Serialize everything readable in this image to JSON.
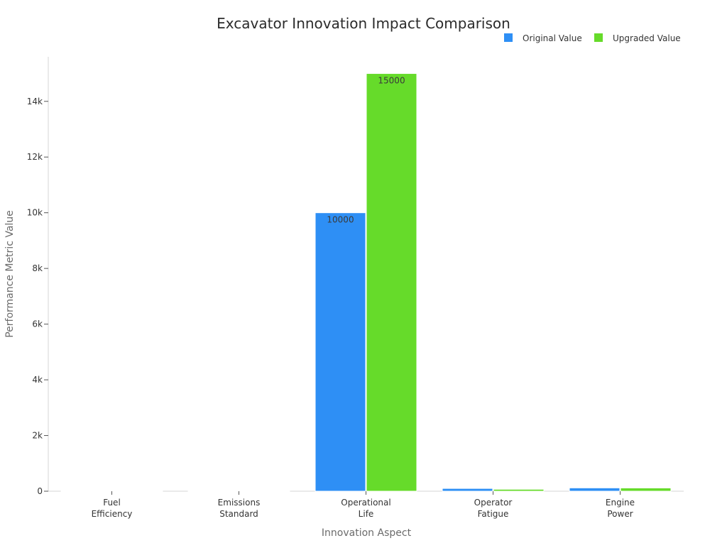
{
  "chart_data": {
    "type": "bar",
    "title": "Excavator Innovation Impact Comparison",
    "xlabel": "Innovation Aspect",
    "ylabel": "Performance Metric Value",
    "ylim": [
      0,
      15600
    ],
    "yticks": [
      0,
      2000,
      4000,
      6000,
      8000,
      10000,
      12000,
      14000
    ],
    "ytick_labels": [
      "0",
      "2k",
      "4k",
      "6k",
      "8k",
      "10k",
      "12k",
      "14k"
    ],
    "categories": [
      [
        "Fuel",
        "Efficiency"
      ],
      [
        "Emissions",
        "Standard"
      ],
      [
        "Operational",
        "Life"
      ],
      [
        "Operator",
        "Fatigue"
      ],
      [
        "Engine",
        "Power"
      ]
    ],
    "series": [
      {
        "name": "Original Value",
        "color": "#2e8ff5",
        "values": [
          25,
          1,
          10000,
          100,
          120
        ]
      },
      {
        "name": "Upgraded Value",
        "color": "#66db2a",
        "values": [
          20,
          1,
          15000,
          70,
          118
        ]
      }
    ],
    "data_labels": [
      [
        "",
        "",
        "10000",
        "",
        ""
      ],
      [
        "",
        "",
        "15000",
        "",
        ""
      ]
    ],
    "legend_position": "top-right",
    "grid": false
  }
}
